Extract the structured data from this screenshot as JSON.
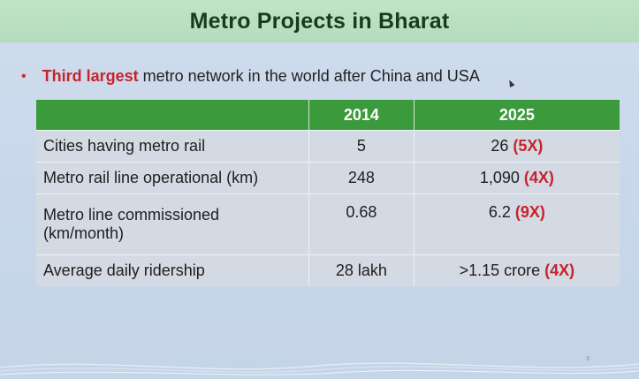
{
  "slide": {
    "title": "Metro Projects in Bharat",
    "bullet": {
      "marker": "•",
      "highlight": "Third largest",
      "text": "metro network in the world after China and USA"
    },
    "table": {
      "headers": [
        "",
        "2014",
        "2025"
      ],
      "rows": [
        {
          "label": "Cities having metro rail",
          "v2014": "5",
          "v2025": "26",
          "mult": "(5X)"
        },
        {
          "label": "Metro rail line operational (km)",
          "v2014": "248",
          "v2025": "1,090",
          "mult": "(4X)"
        },
        {
          "label": "Metro line commissioned (km/month)",
          "v2014": "0.68",
          "v2025": "6.2",
          "mult": "(9X)"
        },
        {
          "label": "Average daily ridership",
          "v2014": "28 lakh",
          "v2025": ">1.15 crore",
          "mult": "(4X)"
        }
      ]
    },
    "page_number": "3"
  },
  "colors": {
    "title_bg": "#b4dcbc",
    "header_bg": "#3b9a3c",
    "accent_red": "#c8232c",
    "cell_bg": "#d3dae3"
  }
}
